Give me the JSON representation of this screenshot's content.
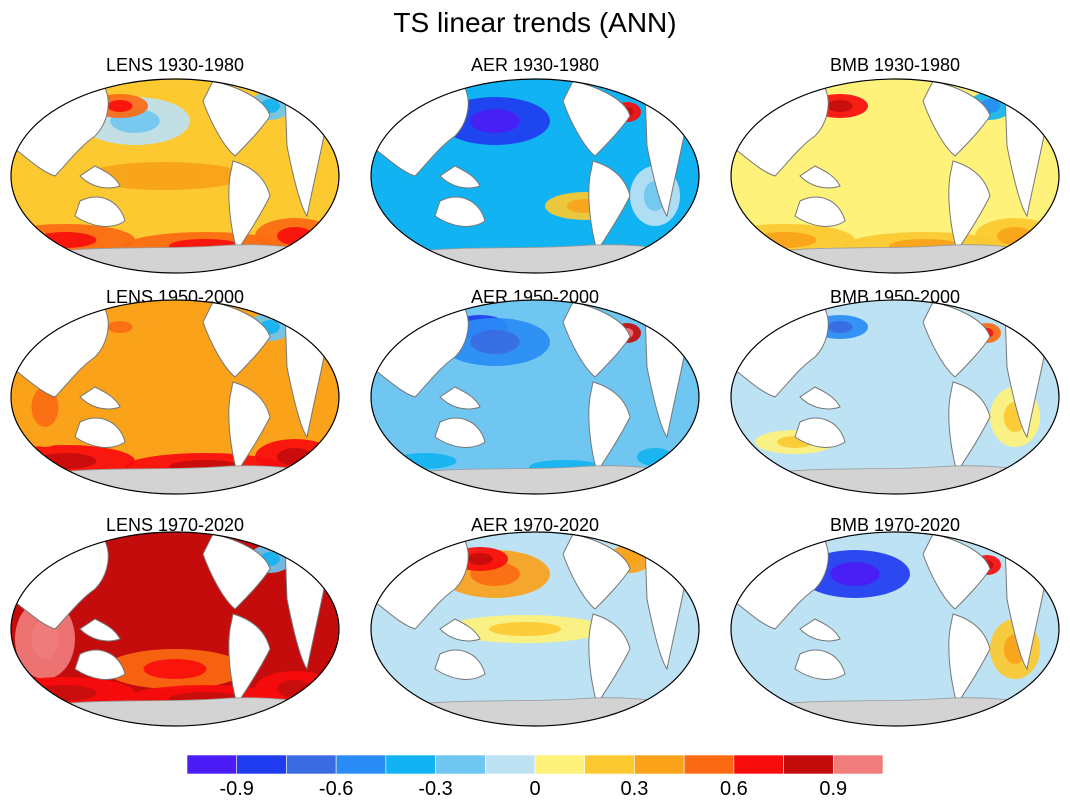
{
  "chart_data": {
    "type": "heatmap",
    "title": "TS linear trends (ANN)",
    "projection": "robinson",
    "layout": {
      "rows": 3,
      "cols": 3
    },
    "panels": [
      {
        "title": "LENS 1930-1980",
        "experiment": "LENS",
        "period": "1930-1980",
        "dominant_value": 0.2,
        "features": [
          {
            "region": "southern-ocean",
            "value": 0.5
          },
          {
            "region": "tropical-pacific",
            "value": 0.3
          },
          {
            "region": "north-pacific",
            "value": -0.1
          },
          {
            "region": "north-atlantic",
            "value": -0.3
          },
          {
            "region": "kuroshio",
            "value": 0.45
          }
        ]
      },
      {
        "title": "AER 1930-1980",
        "experiment": "AER",
        "period": "1930-1980",
        "dominant_value": -0.4,
        "features": [
          {
            "region": "north-pacific",
            "value": -0.85
          },
          {
            "region": "gulf-stream",
            "value": 0.6
          },
          {
            "region": "southeast-pacific",
            "value": 0.2
          },
          {
            "region": "south-atlantic",
            "value": -0.15
          }
        ]
      },
      {
        "title": "BMB 1930-1980",
        "experiment": "BMB",
        "period": "1930-1980",
        "dominant_value": 0.1,
        "features": [
          {
            "region": "kuroshio",
            "value": 0.6
          },
          {
            "region": "north-atlantic",
            "value": -0.4
          },
          {
            "region": "southern-ocean",
            "value": 0.2
          }
        ]
      },
      {
        "title": "LENS 1950-2000",
        "experiment": "LENS",
        "period": "1950-2000",
        "dominant_value": 0.3,
        "features": [
          {
            "region": "southern-ocean",
            "value": 0.6
          },
          {
            "region": "indian-ocean",
            "value": 0.4
          },
          {
            "region": "north-atlantic",
            "value": -0.2
          },
          {
            "region": "kuroshio",
            "value": 0.4
          }
        ]
      },
      {
        "title": "AER 1950-2000",
        "experiment": "AER",
        "period": "1950-2000",
        "dominant_value": -0.3,
        "features": [
          {
            "region": "kuroshio",
            "value": -0.85
          },
          {
            "region": "gulf-stream",
            "value": 0.8
          },
          {
            "region": "north-pacific",
            "value": -0.5
          },
          {
            "region": "southern-ocean",
            "value": -0.2
          }
        ]
      },
      {
        "title": "BMB 1950-2000",
        "experiment": "BMB",
        "period": "1950-2000",
        "dominant_value": -0.1,
        "features": [
          {
            "region": "kuroshio",
            "value": -0.5
          },
          {
            "region": "gulf-stream",
            "value": 0.5
          },
          {
            "region": "south-indian",
            "value": 0.1
          },
          {
            "region": "south-atlantic",
            "value": 0.1
          }
        ]
      },
      {
        "title": "LENS 1970-2020",
        "experiment": "LENS",
        "period": "1970-2020",
        "dominant_value": 0.8,
        "features": [
          {
            "region": "indian-ocean",
            "value": 0.95
          },
          {
            "region": "south-pacific",
            "value": 0.5
          },
          {
            "region": "north-atlantic",
            "value": -0.3
          },
          {
            "region": "southern-ocean",
            "value": 0.65
          }
        ]
      },
      {
        "title": "AER 1970-2020",
        "experiment": "AER",
        "period": "1970-2020",
        "dominant_value": -0.1,
        "features": [
          {
            "region": "north-pacific",
            "value": 0.4
          },
          {
            "region": "kuroshio",
            "value": 0.7
          },
          {
            "region": "north-atlantic",
            "value": 0.3
          },
          {
            "region": "tropical-pacific",
            "value": 0.1
          }
        ]
      },
      {
        "title": "BMB 1970-2020",
        "experiment": "BMB",
        "period": "1970-2020",
        "dominant_value": -0.1,
        "features": [
          {
            "region": "north-pacific",
            "value": -0.9
          },
          {
            "region": "gulf-stream",
            "value": 0.6
          },
          {
            "region": "south-atlantic",
            "value": 0.15
          }
        ]
      }
    ],
    "colorbar": {
      "levels": [
        -1.05,
        -0.9,
        -0.75,
        -0.6,
        -0.45,
        -0.3,
        -0.15,
        0,
        0.15,
        0.3,
        0.45,
        0.6,
        0.75,
        0.9,
        1.05
      ],
      "colors": [
        "#4b1cf5",
        "#1f3cf0",
        "#3a6be3",
        "#2a8cf5",
        "#12b3f2",
        "#6fc6f1",
        "#bde2f4",
        "#fff27a",
        "#fcc930",
        "#f9a21a",
        "#fb6a12",
        "#f80c0c",
        "#c40c0c",
        "#f07c7c"
      ],
      "tick_labels": [
        "-0.9",
        "-0.6",
        "-0.3",
        "0",
        "0.3",
        "0.6",
        "0.9"
      ],
      "tick_values": [
        -0.9,
        -0.6,
        -0.3,
        0,
        0.3,
        0.6,
        0.9
      ]
    },
    "land_color": "#ffffff",
    "antarctica_color": "#d3d3d3"
  }
}
